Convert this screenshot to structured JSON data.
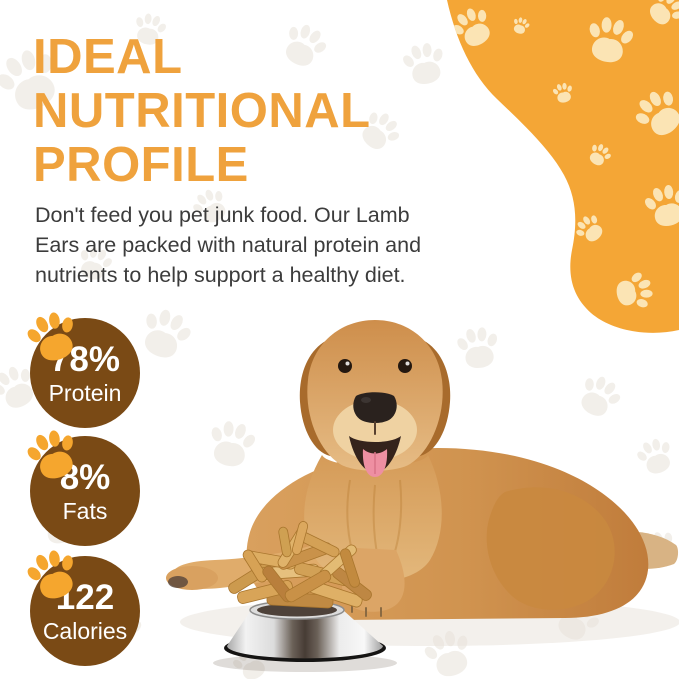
{
  "title": {
    "lines": [
      "IDEAL",
      "NUTRITIONAL",
      "PROFILE"
    ]
  },
  "description": {
    "lines": [
      "Don't feed you pet junk food. Our Lamb",
      "Ears are packed with natural protein and",
      "nutrients to help support a healthy diet."
    ]
  },
  "stats": [
    {
      "icon": "paw-icon",
      "value": "78%",
      "label": "Protein"
    },
    {
      "icon": "paw-icon",
      "value": "8%",
      "label": "Fats"
    },
    {
      "icon": "paw-icon",
      "value": "122",
      "label": "Calories"
    }
  ],
  "illustration": {
    "dog": "golden-retriever-lying-with-open-mouth",
    "bowl": "stainless-steel-bowl-with-lamb-ear-treats",
    "decor": "orange-blob-with-paw-prints"
  },
  "colors": {
    "accent_orange": "#EFA23D",
    "blob_orange": "#F4A636",
    "paw_cream": "#FBE4B4",
    "paw_orange": "#F5A62E",
    "circle_brown": "#7A4A15",
    "text_dark": "#3C3C3C",
    "background": "#FFFFFF"
  }
}
